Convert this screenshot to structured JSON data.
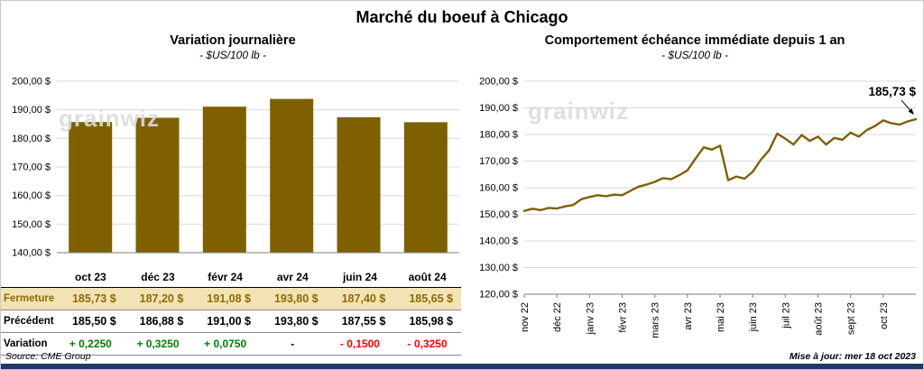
{
  "page": {
    "title": "Marché du boeuf à Chicago",
    "source": "Source: CME Group",
    "updated": "Mise à jour: mer 18 oct 2023",
    "watermark": "grainwiz"
  },
  "colors": {
    "gold": "#7F6000",
    "gold_text": "#8F6B00",
    "fermeture_bg": "#F2E3B6",
    "green": "#008000",
    "red": "#FF0000",
    "navy": "#1F3864",
    "grid": "#D9D9D9"
  },
  "left_chart": {
    "title": "Variation journalière",
    "subtitle": "- $US/100 lb -"
  },
  "right_chart": {
    "title": "Comportement échéance immédiate depuis 1 an",
    "subtitle": "- $US/100 lb -"
  },
  "table": {
    "months": [
      "oct 23",
      "déc 23",
      "févr 24",
      "avr 24",
      "juin 24",
      "août 24"
    ],
    "rows": [
      {
        "label": "Fermeture",
        "style": "fermeture",
        "values": [
          "185,73 $",
          "187,20 $",
          "191,08 $",
          "193,80 $",
          "187,40 $",
          "185,65 $"
        ]
      },
      {
        "label": "Précédent",
        "style": "precedent",
        "values": [
          "185,50 $",
          "186,88 $",
          "191,00 $",
          "193,80 $",
          "187,55 $",
          "185,98 $"
        ]
      },
      {
        "label": "Variation",
        "style": "variation",
        "values": [
          "+ 0,2250",
          "+ 0,3250",
          "+ 0,0750",
          "-",
          "- 0,1500",
          "- 0,3250"
        ],
        "value_classes": [
          "pos",
          "pos",
          "pos",
          "neutral",
          "neg",
          "neg"
        ]
      }
    ]
  },
  "chart_data": [
    {
      "type": "bar",
      "title": "Variation journalière",
      "subtitle": "- $US/100 lb -",
      "categories": [
        "oct 23",
        "déc 23",
        "févr 24",
        "avr 24",
        "juin 24",
        "août 24"
      ],
      "values": [
        185.73,
        187.2,
        191.08,
        193.8,
        187.4,
        185.65
      ],
      "ylim": [
        140,
        200
      ],
      "ytick_labels": [
        "140,00 $",
        "150,00 $",
        "160,00 $",
        "170,00 $",
        "180,00 $",
        "190,00 $",
        "200,00 $"
      ],
      "bar_color": "#7F6000",
      "grid": true,
      "legend": "none"
    },
    {
      "type": "line",
      "title": "Comportement échéance immédiate depuis 1 an",
      "subtitle": "- $US/100 lb -",
      "x_tick_labels": [
        "nov 22",
        "déc 22",
        "janv 23",
        "févr 23",
        "mars 23",
        "avr 23",
        "mai 23",
        "juin 23",
        "juil 23",
        "août 23",
        "sept 23",
        "oct 23"
      ],
      "points_per_month": 4,
      "values": [
        151.3,
        152.1,
        151.6,
        152.4,
        152.2,
        153.0,
        153.5,
        155.7,
        156.5,
        157.2,
        156.8,
        157.4,
        157.2,
        158.8,
        160.4,
        161.2,
        162.2,
        163.6,
        163.2,
        164.7,
        166.5,
        171.0,
        175.2,
        174.3,
        175.8,
        162.8,
        164.2,
        163.4,
        166.0,
        170.5,
        174.0,
        180.3,
        178.4,
        176.2,
        179.8,
        177.6,
        179.2,
        176.2,
        178.7,
        178.0,
        180.7,
        179.2,
        181.7,
        183.2,
        185.3,
        184.2,
        183.7,
        184.9,
        185.73
      ],
      "ylim": [
        120,
        200
      ],
      "ytick_labels": [
        "120,00 $",
        "130,00 $",
        "140,00 $",
        "150,00 $",
        "160,00 $",
        "170,00 $",
        "180,00 $",
        "190,00 $",
        "200,00 $"
      ],
      "line_color": "#7F6000",
      "last_label": "185,73 $",
      "grid": true,
      "legend": "none"
    }
  ]
}
